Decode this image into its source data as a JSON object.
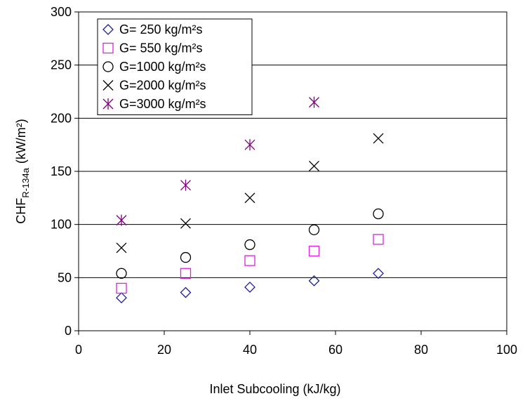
{
  "chart_data": {
    "type": "scatter",
    "xlabel": "Inlet Subcooling (kJ/kg)",
    "ylabel_main": "CHF",
    "ylabel_sub": "R-134a",
    "ylabel_unit": "(kW/m²)",
    "xlim": [
      0,
      100
    ],
    "ylim": [
      0,
      300
    ],
    "x_ticks": [
      "0",
      "20",
      "40",
      "60",
      "80",
      "100"
    ],
    "y_ticks": [
      "0",
      "50",
      "100",
      "150",
      "200",
      "250",
      "300"
    ],
    "grid": "horizontal",
    "legend_position": "top-left",
    "series": [
      {
        "name": "G=  250  kg/m²s",
        "marker": "diamond",
        "color": "#1f1f9e",
        "x": [
          10,
          25,
          40,
          55,
          70
        ],
        "y": [
          31,
          36,
          41,
          47,
          54
        ]
      },
      {
        "name": "G=  550  kg/m²s",
        "marker": "square",
        "color": "#e020e0",
        "x": [
          10,
          25,
          40,
          55,
          70
        ],
        "y": [
          40,
          54,
          66,
          75,
          86
        ]
      },
      {
        "name": "G=1000  kg/m²s",
        "marker": "circle",
        "color": "#000000",
        "x": [
          10,
          25,
          40,
          55,
          70
        ],
        "y": [
          54,
          69,
          81,
          95,
          110
        ]
      },
      {
        "name": "G=2000  kg/m²s",
        "marker": "x",
        "color": "#000000",
        "x": [
          10,
          25,
          40,
          55,
          70
        ],
        "y": [
          78,
          101,
          125,
          155,
          181
        ]
      },
      {
        "name": "G=3000  kg/m²s",
        "marker": "asterisk",
        "color": "#800080",
        "x": [
          10,
          25,
          40
        ],
        "y": [
          104,
          137,
          175
        ]
      },
      {
        "name": "G=3000  kg/m²s extra",
        "marker": "asterisk",
        "color": "#800080",
        "x": [
          55
        ],
        "y": [
          215
        ],
        "hidden_legend": true
      }
    ]
  }
}
